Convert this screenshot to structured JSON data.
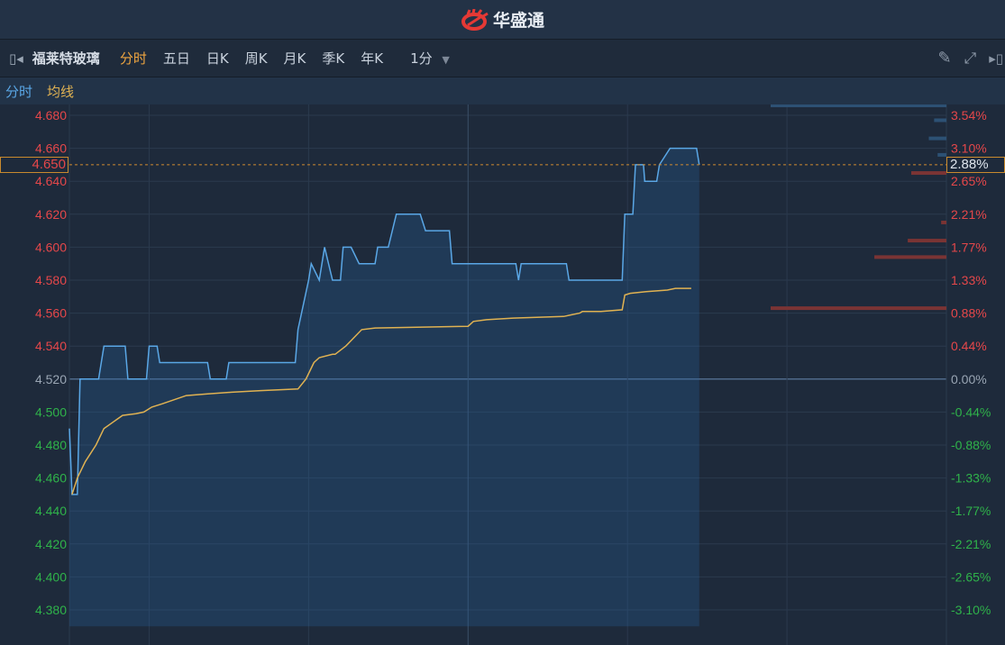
{
  "app": {
    "brand": "华盛通",
    "logo_color": "#e53935"
  },
  "toolbar": {
    "stock_name": "福莱特玻璃",
    "tabs": [
      {
        "label": "分时",
        "active": true
      },
      {
        "label": "五日"
      },
      {
        "label": "日K"
      },
      {
        "label": "周K"
      },
      {
        "label": "月K"
      },
      {
        "label": "季K"
      },
      {
        "label": "年K"
      }
    ],
    "interval": "1分",
    "icons": [
      "collapse-left-icon",
      "pencil-icon",
      "fullscreen-icon",
      "expand-right-icon"
    ]
  },
  "legend": {
    "price_label": "分时",
    "avg_label": "均线",
    "price_color": "#5aa7e6",
    "avg_color": "#e0b252"
  },
  "crosshair": {
    "price": "4.650",
    "pct": "2.88%"
  },
  "chart_data": {
    "type": "line",
    "prev_close": 4.52,
    "ylim": [
      4.38,
      4.68
    ],
    "x_unit": "minutes since open",
    "xlim": [
      0,
      330
    ],
    "grid": true,
    "y_ticks": [
      "4.680",
      "4.660",
      "4.640",
      "4.620",
      "4.600",
      "4.580",
      "4.560",
      "4.540",
      "4.520",
      "4.500",
      "4.480",
      "4.460",
      "4.440",
      "4.420",
      "4.400",
      "4.380"
    ],
    "pct_ticks": [
      "3.54%",
      "3.10%",
      "2.65%",
      "2.21%",
      "1.77%",
      "1.33%",
      "0.88%",
      "0.44%",
      "0.00%",
      "-0.44%",
      "-0.88%",
      "-1.33%",
      "-1.77%",
      "-2.21%",
      "-2.65%",
      "-3.10%"
    ],
    "colors": {
      "up": "#e5474a",
      "down": "#2fb34a",
      "flat": "#9aa6b4"
    },
    "series": [
      {
        "key": "price",
        "x": [
          0,
          0.5,
          1,
          3,
          4,
          11,
          13,
          15,
          21,
          22,
          29,
          30,
          31,
          33,
          34,
          52,
          53,
          59,
          60,
          85,
          86,
          90,
          91,
          94,
          96,
          99,
          100,
          102,
          103,
          106,
          109,
          110,
          111,
          115,
          116,
          118,
          120,
          123,
          130,
          132,
          134,
          143,
          144,
          147,
          148,
          148.5,
          150,
          168,
          169,
          170,
          171,
          187,
          188,
          189,
          208,
          209,
          211,
          212,
          213,
          216,
          216.5,
          218,
          219,
          221,
          222,
          226,
          228,
          236,
          237
        ],
        "values": [
          4.49,
          4.47,
          4.45,
          4.45,
          4.52,
          4.52,
          4.54,
          4.54,
          4.54,
          4.52,
          4.52,
          4.54,
          4.54,
          4.54,
          4.53,
          4.53,
          4.52,
          4.52,
          4.53,
          4.53,
          4.55,
          4.58,
          4.59,
          4.58,
          4.6,
          4.58,
          4.58,
          4.58,
          4.6,
          4.6,
          4.59,
          4.59,
          4.59,
          4.59,
          4.6,
          4.6,
          4.6,
          4.62,
          4.62,
          4.62,
          4.61,
          4.61,
          4.59,
          4.59,
          4.59,
          4.59,
          4.59,
          4.59,
          4.58,
          4.59,
          4.59,
          4.59,
          4.58,
          4.58,
          4.58,
          4.62,
          4.62,
          4.62,
          4.65,
          4.65,
          4.64,
          4.64,
          4.64,
          4.64,
          4.65,
          4.66,
          4.66,
          4.66,
          4.65
        ]
      },
      {
        "key": "avg",
        "x": [
          1,
          3,
          6,
          10,
          13,
          20,
          25,
          28,
          31,
          35,
          44,
          52,
          61,
          72,
          86,
          89,
          92,
          94,
          99,
          100,
          104,
          107,
          110,
          115,
          150,
          152,
          157,
          167,
          186,
          189,
          192,
          193,
          197,
          200,
          208,
          209,
          211,
          217,
          225,
          228,
          234
        ],
        "values": [
          4.45,
          4.46,
          4.47,
          4.48,
          4.49,
          4.498,
          4.499,
          4.5,
          4.503,
          4.505,
          4.51,
          4.511,
          4.512,
          4.513,
          4.514,
          4.52,
          4.53,
          4.533,
          4.535,
          4.535,
          4.54,
          4.545,
          4.55,
          4.551,
          4.552,
          4.555,
          4.556,
          4.557,
          4.558,
          4.559,
          4.56,
          4.561,
          4.561,
          4.561,
          4.562,
          4.571,
          4.572,
          4.573,
          4.574,
          4.575,
          4.575
        ]
      }
    ],
    "order_book": {
      "ask": [
        {
          "price": 4.686,
          "size": 1.0
        },
        {
          "price": 4.677,
          "size": 0.07
        },
        {
          "price": 4.666,
          "size": 0.1
        },
        {
          "price": 4.656,
          "size": 0.05
        }
      ],
      "bid": [
        {
          "price": 4.645,
          "size": 0.2
        },
        {
          "price": 4.615,
          "size": 0.03
        },
        {
          "price": 4.604,
          "size": 0.22
        },
        {
          "price": 4.594,
          "size": 0.41
        },
        {
          "price": 4.563,
          "size": 1.0
        }
      ],
      "ask_color": "#2d5174",
      "bid_color": "#7a3434"
    }
  }
}
